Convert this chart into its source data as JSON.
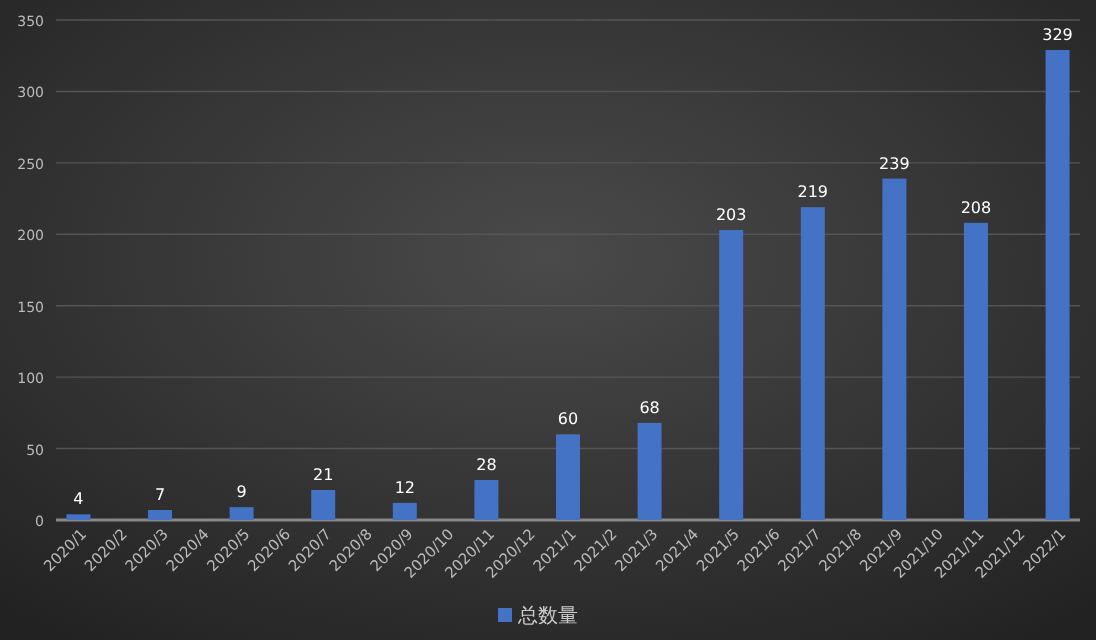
{
  "chart_data": {
    "type": "bar",
    "categories": [
      "2020/1",
      "2020/2",
      "2020/3",
      "2020/4",
      "2020/5",
      "2020/6",
      "2020/7",
      "2020/8",
      "2020/9",
      "2020/10",
      "2020/11",
      "2020/12",
      "2021/1",
      "2021/2",
      "2021/3",
      "2021/4",
      "2021/5",
      "2021/6",
      "2021/7",
      "2021/8",
      "2021/9",
      "2021/10",
      "2021/11",
      "2021/12",
      "2022/1"
    ],
    "series": [
      {
        "name": "总数量",
        "color": "#4472c4",
        "values": [
          4,
          null,
          7,
          null,
          9,
          null,
          21,
          null,
          12,
          null,
          28,
          null,
          60,
          null,
          68,
          null,
          203,
          null,
          219,
          null,
          239,
          null,
          208,
          null,
          329
        ]
      }
    ],
    "ylim": [
      0,
      350
    ],
    "yticks": [
      0,
      50,
      100,
      150,
      200,
      250,
      300,
      350
    ],
    "grid": "y",
    "data_labels": true,
    "legend": "bottom"
  }
}
